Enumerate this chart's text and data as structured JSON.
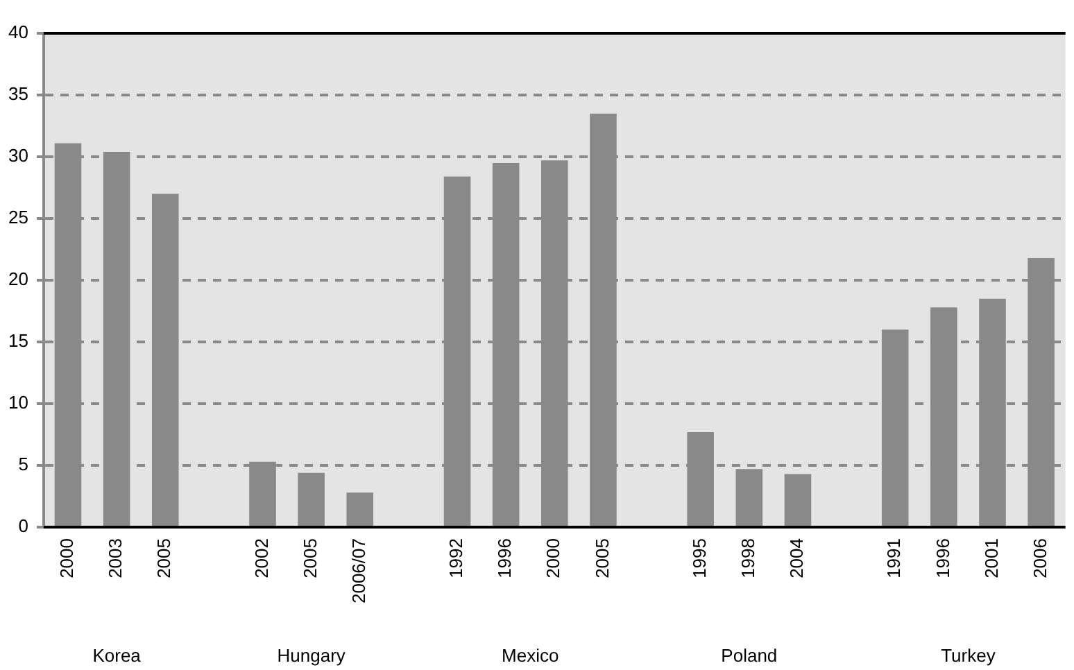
{
  "chart_data": {
    "type": "bar",
    "categories": [
      "2000",
      "2003",
      "2005",
      null,
      "2002",
      "2005",
      "2006/07",
      null,
      "1992",
      "1996",
      "2000",
      "2005",
      null,
      "1995",
      "1998",
      "2004",
      null,
      "1991",
      "1996",
      "2001",
      "2006"
    ],
    "values": [
      31.1,
      30.4,
      27.0,
      null,
      5.3,
      4.4,
      2.8,
      null,
      28.4,
      29.5,
      29.7,
      33.5,
      null,
      7.7,
      4.7,
      4.3,
      null,
      16.0,
      17.8,
      18.5,
      21.8
    ],
    "color": "#898989",
    "ylim": [
      0,
      40
    ],
    "yticks": [
      0,
      5,
      10,
      15,
      20,
      25,
      30,
      35,
      40
    ],
    "grid": "y",
    "line_style": "dashed",
    "legend": false,
    "annotations": [
      "Korea",
      "Hungary",
      "Mexico",
      "Poland",
      "Turkey"
    ]
  }
}
